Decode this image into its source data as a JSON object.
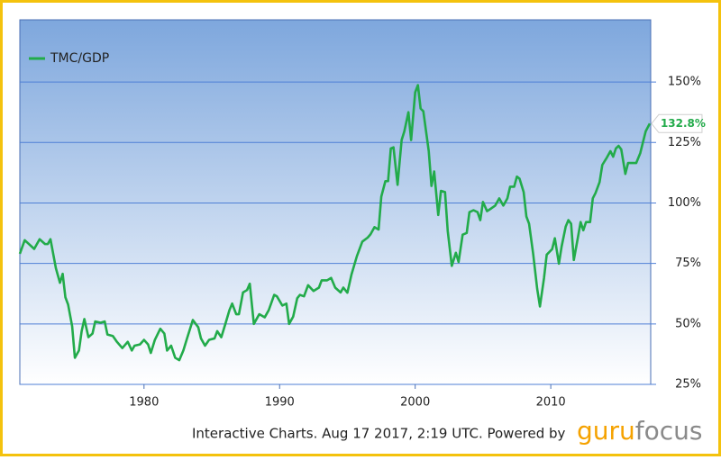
{
  "chart_data": {
    "type": "line",
    "x": [
      1970.84,
      1971.2,
      1971.9,
      1972.3,
      1972.7,
      1972.9,
      1973.1,
      1973.5,
      1973.8,
      1974.0,
      1974.2,
      1974.4,
      1974.7,
      1974.9,
      1975.2,
      1975.4,
      1975.6,
      1975.9,
      1976.2,
      1976.4,
      1976.8,
      1977.1,
      1977.3,
      1977.7,
      1978.0,
      1978.4,
      1978.8,
      1979.1,
      1979.3,
      1979.7,
      1980.0,
      1980.3,
      1980.5,
      1980.8,
      1981.2,
      1981.5,
      1981.7,
      1982.0,
      1982.3,
      1982.6,
      1982.9,
      1983.2,
      1983.6,
      1984.0,
      1984.2,
      1984.5,
      1984.8,
      1985.2,
      1985.4,
      1985.7,
      1986.0,
      1986.3,
      1986.5,
      1986.8,
      1987.0,
      1987.3,
      1987.6,
      1987.8,
      1988.1,
      1988.5,
      1988.9,
      1989.2,
      1989.6,
      1989.8,
      1990.2,
      1990.5,
      1990.7,
      1991.0,
      1991.3,
      1991.5,
      1991.8,
      1992.1,
      1992.5,
      1992.9,
      1993.1,
      1993.5,
      1993.8,
      1994.1,
      1994.5,
      1994.7,
      1995.0,
      1995.3,
      1995.7,
      1996.1,
      1996.5,
      1996.7,
      1997.0,
      1997.3,
      1997.5,
      1997.8,
      1998.0,
      1998.2,
      1998.4,
      1998.7,
      1999.0,
      1999.2,
      1999.5,
      1999.7,
      2000.0,
      2000.2,
      2000.4,
      2000.6,
      2001.0,
      2001.2,
      2001.4,
      2001.7,
      2001.9,
      2002.2,
      2002.4,
      2002.7,
      2003.0,
      2003.2,
      2003.5,
      2003.8,
      2004.0,
      2004.3,
      2004.6,
      2004.8,
      2005.0,
      2005.3,
      2005.6,
      2005.9,
      2006.2,
      2006.5,
      2006.8,
      2007.0,
      2007.3,
      2007.5,
      2007.7,
      2008.0,
      2008.2,
      2008.4,
      2008.7,
      2009.0,
      2009.2,
      2009.5,
      2009.7,
      2010.1,
      2010.3,
      2010.6,
      2010.8,
      2011.1,
      2011.3,
      2011.5,
      2011.7,
      2012.0,
      2012.2,
      2012.4,
      2012.6,
      2012.9,
      2013.1,
      2013.3,
      2013.6,
      2013.8,
      2014.1,
      2014.4,
      2014.6,
      2014.8,
      2015.0,
      2015.2,
      2015.5,
      2015.7,
      2016.0,
      2016.3,
      2016.6,
      2016.8,
      2017.0,
      2017.3
    ],
    "series": [
      {
        "name": "TMC/GDP",
        "color": "#22ab4a",
        "values": [
          79,
          84.6,
          81,
          85,
          83,
          83,
          85,
          73,
          67,
          70.7,
          61,
          58,
          49,
          36,
          39,
          47,
          52,
          44.5,
          46,
          51,
          50.5,
          51,
          45.6,
          45,
          42.6,
          40,
          42.6,
          39,
          41,
          41.5,
          43.4,
          41.5,
          38,
          43.4,
          48,
          46,
          39,
          41,
          36,
          35,
          39,
          44.5,
          51.6,
          48.6,
          44,
          41,
          43.4,
          44,
          47,
          44.5,
          50,
          55.7,
          58.4,
          54,
          54,
          63,
          64,
          66.6,
          50,
          54,
          52.7,
          55.7,
          62,
          61.4,
          57.6,
          58.4,
          50,
          53,
          60.6,
          62,
          61.4,
          66,
          63.6,
          65,
          68,
          68,
          69,
          65,
          63,
          65,
          62.9,
          70.4,
          78,
          84,
          85.7,
          87,
          90,
          89,
          102.6,
          109,
          109,
          122.5,
          123,
          107.5,
          126,
          129.6,
          137.5,
          126,
          145.7,
          148.7,
          139,
          137.9,
          121.4,
          107,
          113,
          95,
          105,
          104.5,
          88.4,
          74,
          79.4,
          75.6,
          86.9,
          87.6,
          96.2,
          97,
          96.2,
          92.9,
          100.4,
          96.6,
          97.7,
          98.9,
          101.9,
          98.9,
          101.9,
          106.7,
          106.7,
          110.9,
          110,
          104.5,
          94.4,
          91.4,
          79,
          64.4,
          57.2,
          68.9,
          78.6,
          80.9,
          85.4,
          74.9,
          82,
          90.2,
          92.9,
          91.4,
          76.4,
          85.7,
          92.1,
          88.7,
          92.1,
          92.1,
          101.9,
          104.1,
          108.6,
          115.7,
          118.4,
          121.4,
          119.1,
          122.5,
          123.6,
          122.1,
          112,
          116.5,
          116.5,
          116.5,
          120.6,
          125.1,
          129.6,
          132.8
        ],
        "value_labels": [
          null,
          null,
          null,
          null,
          null,
          null,
          null,
          null,
          null,
          null,
          null,
          null,
          null,
          null,
          null,
          null,
          null,
          null,
          null,
          null,
          null,
          null,
          null,
          null,
          null,
          null,
          null,
          null,
          null,
          null,
          null,
          null,
          null,
          null,
          null,
          null,
          null,
          null,
          null,
          null,
          null,
          null,
          null,
          null,
          null,
          null,
          null,
          null,
          null,
          null,
          null,
          null,
          null,
          null,
          null,
          null,
          null,
          null,
          null,
          null,
          null,
          null,
          null,
          null,
          null,
          null,
          null,
          null,
          null,
          null,
          null,
          null,
          null,
          null,
          null,
          null,
          null,
          null,
          null,
          null,
          null,
          null,
          null,
          null,
          null,
          null,
          null,
          null,
          null,
          null,
          null,
          null,
          null,
          null,
          null,
          null,
          null,
          null,
          null,
          null,
          null,
          null,
          null,
          null,
          null,
          null,
          null,
          null,
          null,
          null,
          null,
          null,
          null,
          null,
          null,
          null,
          null,
          null,
          null,
          null,
          null,
          null,
          null,
          null,
          null,
          null,
          null,
          null,
          null,
          null,
          null,
          null,
          null,
          null,
          null,
          null,
          null,
          null,
          null,
          null,
          null,
          null,
          null,
          null,
          null,
          null,
          null,
          null,
          null,
          null,
          null,
          null,
          null,
          null,
          null,
          null,
          null,
          null,
          null,
          null,
          null,
          null,
          null,
          null,
          null,
          null,
          null,
          "132.8%"
        ]
      }
    ],
    "xlim": [
      1970.84,
      2017.37
    ],
    "xticks": [
      1980,
      1990,
      2000,
      2010
    ],
    "ylim": [
      25,
      175.7
    ],
    "yticks": [
      {
        "value": 25,
        "label": "25%"
      },
      {
        "value": 50,
        "label": "50%"
      },
      {
        "value": 75,
        "label": "75%"
      },
      {
        "value": 100,
        "label": "100%"
      },
      {
        "value": 125,
        "label": "125%"
      },
      {
        "value": 150,
        "label": "150%"
      }
    ],
    "grid": true,
    "legend": "top-left"
  },
  "footer": {
    "text": "Interactive Charts. Aug 17 2017, 2:19 UTC. Powered by",
    "logo_first": "guru",
    "logo_second": "focus"
  }
}
